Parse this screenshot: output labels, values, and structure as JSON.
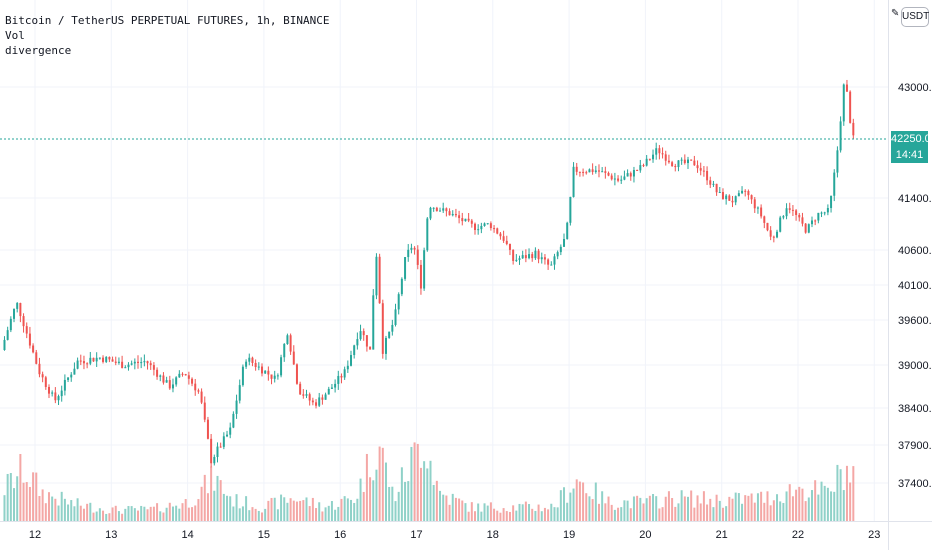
{
  "legend": {
    "symbol_line": "Bitcoin / TetherUS PERPETUAL FUTURES, 1h, BINANCE",
    "indicator_vol": "Vol",
    "indicator_div": "divergence"
  },
  "currency_button": "USDT",
  "price_scale_icon": "pencil-icon",
  "last_price": {
    "value_label": "42250.0",
    "countdown": "14:41"
  },
  "colors": {
    "up": "#26a69a",
    "down": "#ef5350",
    "up_volume": "#8fd1c8",
    "down_volume": "#f4a7a5",
    "grid": "#f0f3fa",
    "last_price_line": "#26a69a"
  },
  "chart_data": {
    "type": "candlestick",
    "title": "Bitcoin / TetherUS PERPETUAL FUTURES, 1h, BINANCE",
    "yticks": [
      43000,
      41400,
      40600,
      40100,
      39600,
      39000,
      38400,
      37900,
      37400
    ],
    "ytick_labels": [
      "43000.0",
      "41400.0",
      "40600.0",
      "40100.0",
      "39600.0",
      "39000.0",
      "38400.0",
      "37900.0",
      "37400.0"
    ],
    "xticks": [
      "12",
      "13",
      "14",
      "15",
      "16",
      "17",
      "18",
      "19",
      "20",
      "21",
      "22",
      "23"
    ],
    "grid": true,
    "last_price": 42250,
    "price_path": [
      {
        "day": 11.6,
        "price": 39200
      },
      {
        "day": 11.8,
        "price": 39850
      },
      {
        "day": 12.1,
        "price": 38900
      },
      {
        "day": 12.3,
        "price": 38500
      },
      {
        "day": 12.6,
        "price": 39050
      },
      {
        "day": 12.9,
        "price": 39100
      },
      {
        "day": 13.2,
        "price": 39000
      },
      {
        "day": 13.5,
        "price": 39050
      },
      {
        "day": 13.8,
        "price": 38700
      },
      {
        "day": 14.0,
        "price": 38900
      },
      {
        "day": 14.2,
        "price": 38600
      },
      {
        "day": 14.35,
        "price": 37700
      },
      {
        "day": 14.6,
        "price": 38100
      },
      {
        "day": 14.8,
        "price": 39100
      },
      {
        "day": 15.0,
        "price": 38950
      },
      {
        "day": 15.2,
        "price": 38800
      },
      {
        "day": 15.35,
        "price": 39450
      },
      {
        "day": 15.5,
        "price": 38650
      },
      {
        "day": 15.7,
        "price": 38450
      },
      {
        "day": 15.9,
        "price": 38650
      },
      {
        "day": 16.1,
        "price": 38900
      },
      {
        "day": 16.3,
        "price": 39500
      },
      {
        "day": 16.45,
        "price": 39150
      },
      {
        "day": 16.5,
        "price": 40800
      },
      {
        "day": 16.6,
        "price": 39200
      },
      {
        "day": 16.75,
        "price": 39600
      },
      {
        "day": 16.9,
        "price": 40500
      },
      {
        "day": 17.0,
        "price": 40700
      },
      {
        "day": 17.1,
        "price": 40100
      },
      {
        "day": 17.2,
        "price": 41300
      },
      {
        "day": 17.5,
        "price": 41150
      },
      {
        "day": 17.8,
        "price": 40950
      },
      {
        "day": 18.0,
        "price": 41000
      },
      {
        "day": 18.2,
        "price": 40750
      },
      {
        "day": 18.3,
        "price": 40450
      },
      {
        "day": 18.6,
        "price": 40550
      },
      {
        "day": 18.8,
        "price": 40350
      },
      {
        "day": 19.0,
        "price": 40800
      },
      {
        "day": 19.1,
        "price": 41800
      },
      {
        "day": 19.4,
        "price": 41800
      },
      {
        "day": 19.7,
        "price": 41650
      },
      {
        "day": 20.0,
        "price": 41850
      },
      {
        "day": 20.2,
        "price": 42100
      },
      {
        "day": 20.4,
        "price": 41900
      },
      {
        "day": 20.7,
        "price": 41900
      },
      {
        "day": 20.85,
        "price": 41700
      },
      {
        "day": 21.0,
        "price": 41450
      },
      {
        "day": 21.2,
        "price": 41350
      },
      {
        "day": 21.35,
        "price": 41500
      },
      {
        "day": 21.55,
        "price": 41150
      },
      {
        "day": 21.7,
        "price": 40750
      },
      {
        "day": 21.9,
        "price": 41300
      },
      {
        "day": 22.0,
        "price": 41150
      },
      {
        "day": 22.15,
        "price": 40900
      },
      {
        "day": 22.3,
        "price": 41150
      },
      {
        "day": 22.45,
        "price": 41200
      },
      {
        "day": 22.55,
        "price": 42000
      },
      {
        "day": 22.65,
        "price": 43100
      },
      {
        "day": 22.7,
        "price": 42800
      },
      {
        "day": 22.75,
        "price": 42250
      }
    ],
    "volume_profile": [
      {
        "day": 11.6,
        "volume": 0.35
      },
      {
        "day": 11.85,
        "volume": 0.55
      },
      {
        "day": 12.1,
        "volume": 0.3
      },
      {
        "day": 12.5,
        "volume": 0.18
      },
      {
        "day": 13.0,
        "volume": 0.12
      },
      {
        "day": 13.5,
        "volume": 0.12
      },
      {
        "day": 14.0,
        "volume": 0.2
      },
      {
        "day": 14.35,
        "volume": 0.45
      },
      {
        "day": 14.6,
        "volume": 0.22
      },
      {
        "day": 15.0,
        "volume": 0.15
      },
      {
        "day": 15.4,
        "volume": 0.25
      },
      {
        "day": 15.8,
        "volume": 0.15
      },
      {
        "day": 16.2,
        "volume": 0.25
      },
      {
        "day": 16.5,
        "volume": 0.85
      },
      {
        "day": 16.7,
        "volume": 0.25
      },
      {
        "day": 17.1,
        "volume": 0.9
      },
      {
        "day": 17.3,
        "volume": 0.3
      },
      {
        "day": 17.7,
        "volume": 0.15
      },
      {
        "day": 18.2,
        "volume": 0.15
      },
      {
        "day": 18.8,
        "volume": 0.15
      },
      {
        "day": 19.1,
        "volume": 0.45
      },
      {
        "day": 19.5,
        "volume": 0.2
      },
      {
        "day": 20.0,
        "volume": 0.2
      },
      {
        "day": 20.4,
        "volume": 0.25
      },
      {
        "day": 21.0,
        "volume": 0.22
      },
      {
        "day": 21.6,
        "volume": 0.25
      },
      {
        "day": 22.0,
        "volume": 0.35
      },
      {
        "day": 22.4,
        "volume": 0.3
      },
      {
        "day": 22.6,
        "volume": 0.55
      },
      {
        "day": 22.8,
        "volume": 0.45
      }
    ]
  }
}
